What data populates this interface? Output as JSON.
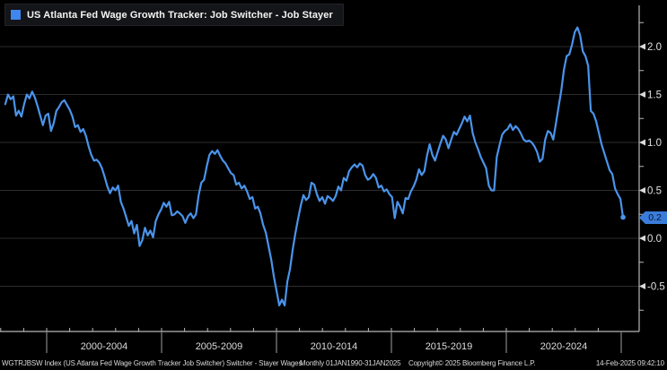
{
  "legend": {
    "series_label": "US Atlanta Fed Wage Growth Tracker: Job Switcher - Job Stayer",
    "swatch_color": "#3f86ef"
  },
  "chart_data": {
    "type": "line",
    "title": "US Atlanta Fed Wage Growth Tracker: Job Switcher - Job Stayer",
    "series_name": "WGTRJBSW Index",
    "x_range_years": [
      1998.2,
      2025.08
    ],
    "x_group_labels": [
      "2000-2004",
      "2005-2009",
      "2010-2014",
      "2015-2019",
      "2020-2024"
    ],
    "x_group_boundary_years": [
      2000,
      2005,
      2010,
      2015,
      2020,
      2025
    ],
    "y_tick_labels": [
      "2.0",
      "1.5",
      "1.0",
      "0.5",
      "0.0",
      "-0.5"
    ],
    "y_tick_values": [
      2.0,
      1.5,
      1.0,
      0.5,
      0.0,
      -0.5
    ],
    "y_minor_tick_values": [
      2.25,
      1.75,
      1.25,
      0.75,
      0.25,
      -0.25,
      -0.75
    ],
    "ylim": [
      -0.97,
      2.39
    ],
    "grid": true,
    "legend_position": "top-left",
    "line_color": "#4a94ea",
    "grid_color": "#2d2d2d",
    "axis_color": "#b8b8b8",
    "label_color": "#e2e2e2",
    "last_value_label": "0.2",
    "last_value": 0.22,
    "values": [
      1.4,
      1.5,
      1.45,
      1.48,
      1.28,
      1.33,
      1.27,
      1.4,
      1.5,
      1.46,
      1.53,
      1.47,
      1.38,
      1.28,
      1.18,
      1.28,
      1.3,
      1.12,
      1.2,
      1.33,
      1.37,
      1.42,
      1.44,
      1.39,
      1.34,
      1.27,
      1.16,
      1.18,
      1.11,
      1.14,
      1.07,
      0.96,
      0.87,
      0.81,
      0.82,
      0.79,
      0.73,
      0.64,
      0.54,
      0.47,
      0.53,
      0.5,
      0.55,
      0.38,
      0.31,
      0.22,
      0.13,
      0.18,
      0.05,
      0.14,
      -0.08,
      -0.02,
      0.11,
      0.03,
      0.08,
      0.01,
      0.18,
      0.25,
      0.3,
      0.37,
      0.33,
      0.38,
      0.24,
      0.25,
      0.28,
      0.26,
      0.23,
      0.16,
      0.23,
      0.26,
      0.21,
      0.25,
      0.45,
      0.58,
      0.61,
      0.75,
      0.87,
      0.91,
      0.88,
      0.92,
      0.86,
      0.81,
      0.78,
      0.73,
      0.68,
      0.66,
      0.56,
      0.58,
      0.52,
      0.55,
      0.49,
      0.41,
      0.43,
      0.31,
      0.33,
      0.26,
      0.14,
      0.06,
      -0.08,
      -0.22,
      -0.4,
      -0.55,
      -0.7,
      -0.64,
      -0.7,
      -0.45,
      -0.32,
      -0.12,
      0.05,
      0.2,
      0.34,
      0.45,
      0.4,
      0.43,
      0.58,
      0.56,
      0.46,
      0.39,
      0.43,
      0.36,
      0.44,
      0.42,
      0.39,
      0.44,
      0.54,
      0.5,
      0.63,
      0.6,
      0.7,
      0.74,
      0.77,
      0.74,
      0.78,
      0.76,
      0.66,
      0.61,
      0.63,
      0.67,
      0.63,
      0.53,
      0.55,
      0.49,
      0.51,
      0.46,
      0.43,
      0.21,
      0.38,
      0.33,
      0.26,
      0.42,
      0.41,
      0.49,
      0.54,
      0.61,
      0.72,
      0.66,
      0.7,
      0.86,
      0.98,
      0.87,
      0.81,
      0.9,
      0.99,
      1.07,
      1.03,
      0.94,
      1.03,
      1.11,
      1.08,
      1.14,
      1.2,
      1.27,
      1.22,
      1.28,
      1.1,
      1.0,
      0.93,
      0.85,
      0.79,
      0.73,
      0.55,
      0.5,
      0.5,
      0.85,
      0.97,
      1.08,
      1.12,
      1.14,
      1.19,
      1.13,
      1.17,
      1.14,
      1.09,
      1.03,
      1.01,
      1.02,
      1.0,
      0.96,
      0.9,
      0.8,
      0.83,
      1.03,
      1.12,
      1.1,
      1.03,
      1.2,
      1.37,
      1.54,
      1.76,
      1.9,
      1.92,
      2.02,
      2.15,
      2.2,
      2.12,
      1.95,
      1.9,
      1.8,
      1.33,
      1.3,
      1.22,
      1.1,
      0.98,
      0.89,
      0.8,
      0.71,
      0.67,
      0.52,
      0.46,
      0.41,
      0.22
    ]
  },
  "footer": {
    "instrument": "WGTRJBSW Index (US Atlanta Fed Wage Growth Tracker Job Switcher) Switcher - Stayer Wages",
    "periodicity": "Monthly 01JAN1990-31JAN2025",
    "copyright": "Copyright© 2025 Bloomberg Finance L.P.",
    "timestamp": "14-Feb-2025 09:42:10"
  }
}
